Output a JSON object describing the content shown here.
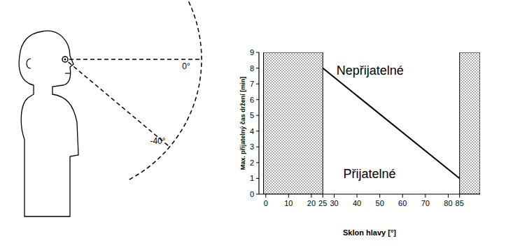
{
  "chart_data": {
    "type": "line",
    "x": [
      25,
      85
    ],
    "values": [
      8,
      1
    ],
    "xlim": [
      -3,
      94
    ],
    "ylim": [
      0,
      9
    ],
    "xticks": [
      0,
      10,
      20,
      25,
      30,
      40,
      50,
      60,
      70,
      80,
      85
    ],
    "yticks": [
      0,
      1,
      2,
      3,
      4,
      5,
      6,
      7,
      8,
      9
    ],
    "xlabel": "Sklon hlavy [°]",
    "ylabel": "Max. přijatelný čas držení [min]",
    "color": "#000000",
    "regions": [
      {
        "from": -1,
        "to": 25,
        "value": 9
      },
      {
        "from": 85,
        "to": 94,
        "value": 9
      }
    ],
    "annotations": [
      {
        "text": "Nepřijatelné",
        "x": 31,
        "y": 7.6
      },
      {
        "text": "Přijatelné",
        "x": 34,
        "y": 1.0
      }
    ]
  },
  "diagram": {
    "angles": [
      {
        "value": 0,
        "label": "0°"
      },
      {
        "value": -40,
        "label": "-40°"
      }
    ]
  }
}
